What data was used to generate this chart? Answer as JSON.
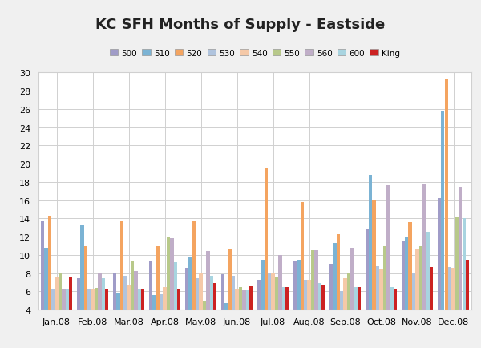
{
  "title": "KC SFH Months of Supply - Eastside",
  "months": [
    "Jan.08",
    "Feb.08",
    "Mar.08",
    "Apr.08",
    "May.08",
    "Jun.08",
    "Jul.08",
    "Aug.08",
    "Sep.08",
    "Oct.08",
    "Nov.08",
    "Dec.08"
  ],
  "series": {
    "500": [
      13.8,
      7.4,
      8.0,
      9.4,
      8.6,
      7.9,
      7.3,
      9.3,
      9.0,
      12.8,
      11.5,
      16.2
    ],
    "510": [
      10.8,
      13.2,
      5.8,
      5.6,
      9.8,
      4.7,
      9.5,
      9.5,
      11.3,
      18.8,
      12.0,
      25.7
    ],
    "520": [
      14.2,
      11.0,
      13.8,
      11.0,
      13.8,
      10.6,
      19.5,
      15.8,
      12.3,
      16.0,
      13.6,
      29.2
    ],
    "530": [
      6.2,
      6.3,
      7.7,
      5.7,
      7.4,
      7.7,
      8.0,
      7.3,
      6.0,
      8.8,
      8.0,
      8.7
    ],
    "540": [
      7.5,
      6.3,
      6.7,
      6.5,
      8.0,
      6.2,
      8.1,
      7.3,
      7.4,
      8.5,
      10.6,
      8.6
    ],
    "550": [
      8.0,
      6.4,
      9.3,
      11.9,
      5.0,
      6.5,
      7.6,
      10.5,
      8.0,
      11.0,
      11.0,
      14.1
    ],
    "560": [
      6.2,
      8.0,
      8.2,
      11.8,
      10.4,
      6.1,
      10.0,
      10.5,
      10.8,
      17.6,
      17.8,
      17.5
    ],
    "600": [
      6.3,
      7.4,
      6.2,
      9.2,
      7.7,
      6.1,
      6.5,
      6.9,
      6.5,
      6.5,
      12.5,
      14.0
    ],
    "King": [
      7.5,
      6.2,
      6.2,
      6.2,
      6.9,
      6.6,
      6.5,
      6.7,
      6.5,
      6.3,
      8.7,
      9.5
    ]
  },
  "colors": {
    "500": "#a09cc8",
    "510": "#7bb3d4",
    "520": "#f4a460",
    "530": "#b0c4de",
    "540": "#f5c9a8",
    "550": "#b8c98a",
    "560": "#c0aec8",
    "600": "#a8d4e0",
    "King": "#cc2222"
  },
  "ylim": [
    4,
    30
  ],
  "yticks": [
    4,
    6,
    8,
    10,
    12,
    14,
    16,
    18,
    20,
    22,
    24,
    26,
    28,
    30
  ],
  "background_color": "#f0f0f0",
  "plot_bg_color": "#ffffff",
  "grid_color": "#d0d0d0"
}
